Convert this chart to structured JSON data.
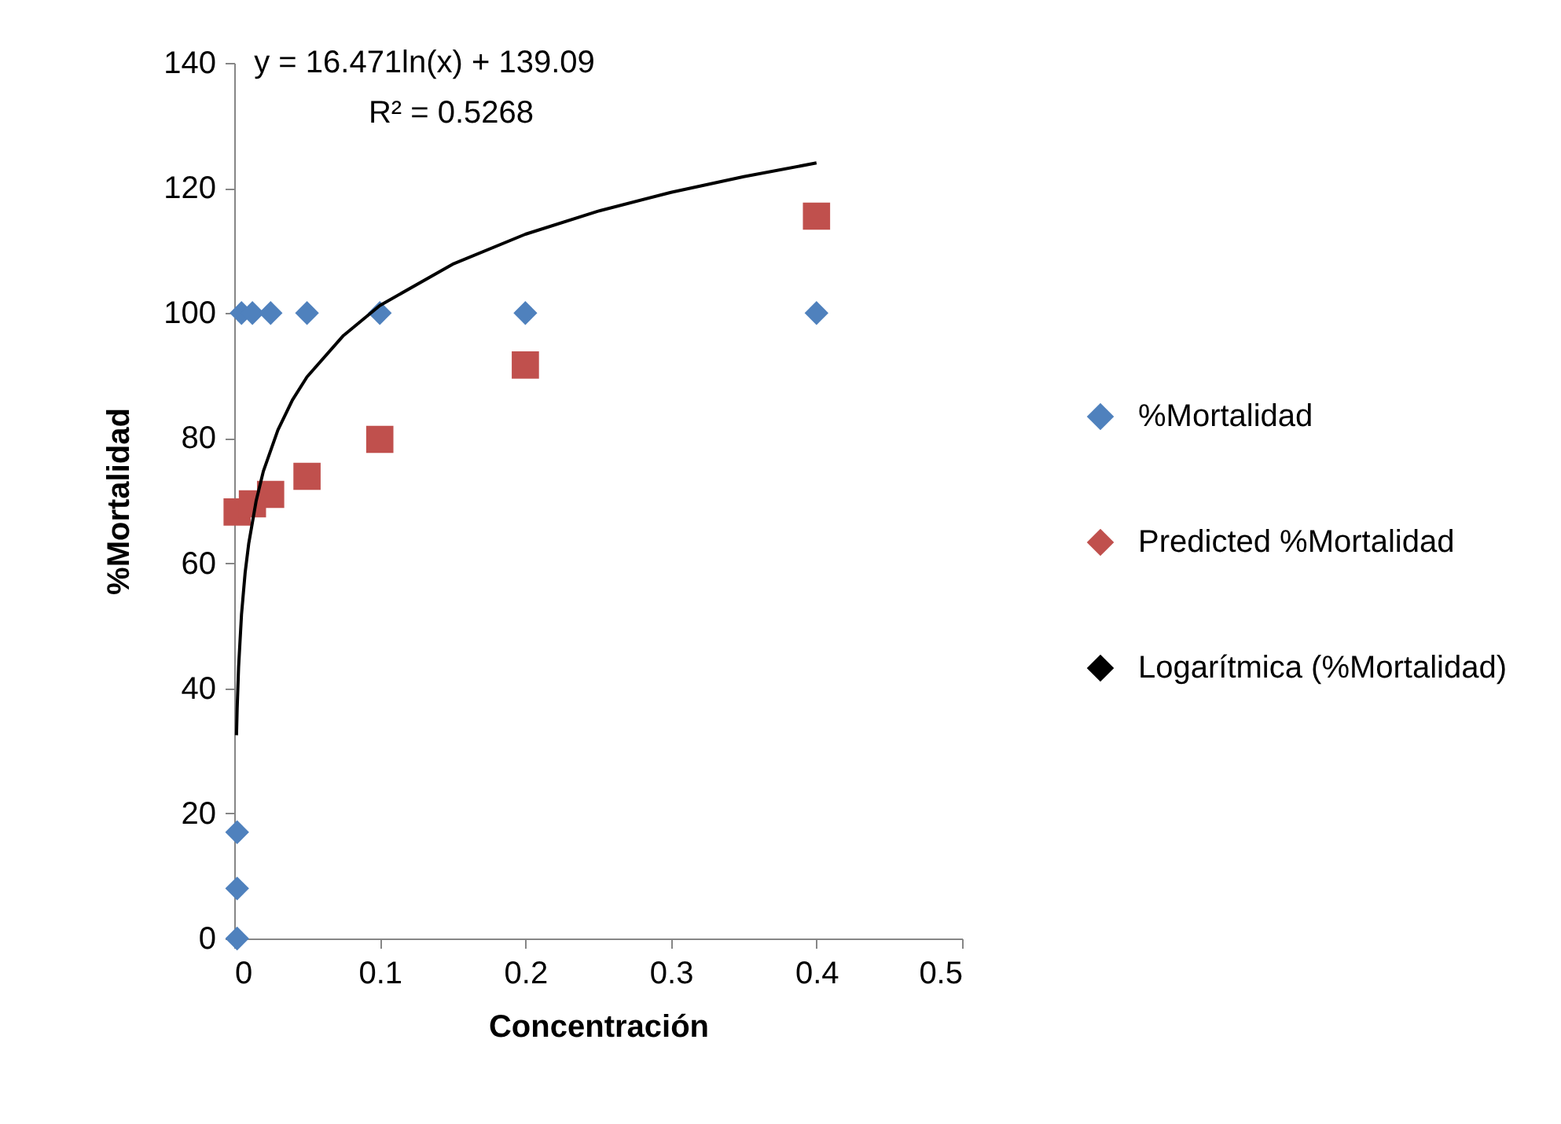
{
  "chart_data": {
    "type": "scatter",
    "xlabel": "Concentración",
    "ylabel": "%Mortalidad",
    "annotations": [
      "y = 16.471ln(x) + 139.09",
      "R² = 0.5268"
    ],
    "xlim": [
      0,
      0.5
    ],
    "xticks": [
      0,
      0.1,
      0.2,
      0.3,
      0.4,
      0.5
    ],
    "ylim": [
      0,
      140
    ],
    "yticks": [
      0,
      20,
      40,
      60,
      80,
      100,
      120,
      140
    ],
    "grid": false,
    "legend": "right",
    "series": [
      {
        "name": "%Mortalidad",
        "color": "#4f81bd",
        "marker": "diamond",
        "x": [
          0.002,
          0.002,
          0.002,
          0.005,
          0.0125,
          0.025,
          0.05,
          0.1,
          0.2,
          0.4
        ],
        "values": [
          0,
          8,
          17,
          100,
          100,
          100,
          100,
          100,
          100,
          100
        ]
      },
      {
        "name": "Predicted %Mortalidad",
        "color": "#c0504d",
        "marker": "square",
        "x": [
          0.002,
          0.0125,
          0.025,
          0.05,
          0.1,
          0.2,
          0.4
        ],
        "values": [
          68.2,
          69.5,
          71,
          73.9,
          79.8,
          91.7,
          115.5
        ]
      },
      {
        "name": "Logarítmica (%Mortalidad)",
        "type": "line",
        "color": "#000000",
        "marker": "none",
        "line_style": "solid",
        "x": [
          0.00155,
          0.002,
          0.003,
          0.005,
          0.0075,
          0.01,
          0.015,
          0.02,
          0.03,
          0.04,
          0.05,
          0.075,
          0.1,
          0.15,
          0.2,
          0.25,
          0.3,
          0.35,
          0.4
        ],
        "values": [
          32.5,
          36.7,
          43.4,
          51.8,
          58.5,
          63.2,
          69.9,
          74.7,
          81.3,
          86.1,
          89.8,
          96.4,
          101.2,
          107.8,
          112.6,
          116.3,
          119.3,
          121.8,
          124.0
        ]
      }
    ]
  }
}
